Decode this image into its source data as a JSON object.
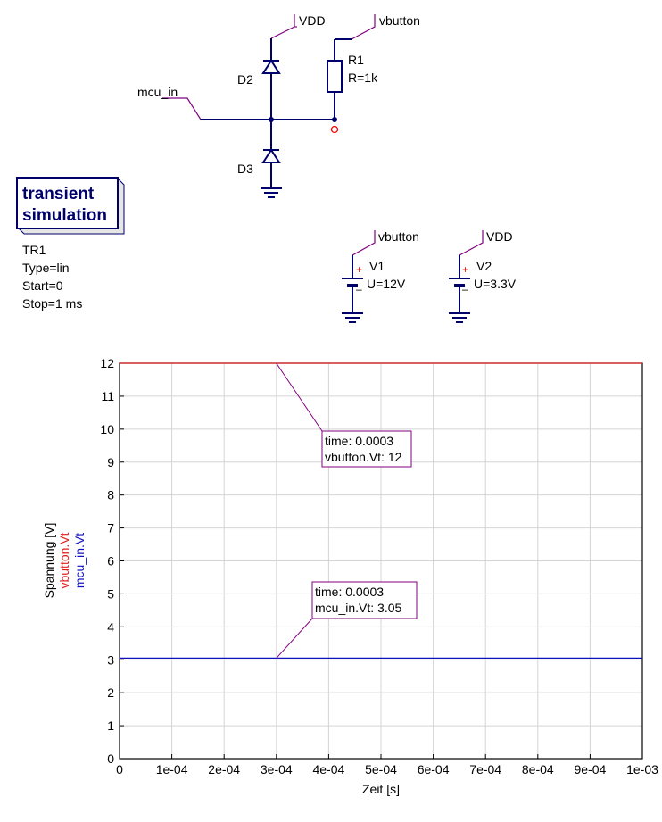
{
  "schematic": {
    "labels": {
      "vdd_top": "VDD",
      "vbutton_top": "vbutton",
      "mcu_in": "mcu_in",
      "vbutton_src": "vbutton",
      "vdd_src": "VDD"
    },
    "components": {
      "d2": "D2",
      "d3": "D3",
      "r1_name": "R1",
      "r1_value": "R=1k",
      "v1_name": "V1",
      "v1_value": "U=12V",
      "v2_name": "V2",
      "v2_value": "U=3.3V"
    },
    "simulation_box": {
      "title_line1": "transient",
      "title_line2": "simulation",
      "name": "TR1",
      "type": "Type=lin",
      "start": "Start=0",
      "stop": "Stop=1 ms"
    },
    "colors": {
      "wire": "#00006b",
      "label_pole": "#800080",
      "node_marker": "#ff0000"
    }
  },
  "chart_data": {
    "type": "line",
    "xlabel": "Zeit [s]",
    "ylabel": "Spannung [V]",
    "xlim": [
      0,
      0.001
    ],
    "ylim": [
      0,
      12
    ],
    "x_ticks": [
      "0",
      "1e-04",
      "2e-04",
      "3e-04",
      "4e-04",
      "5e-04",
      "6e-04",
      "7e-04",
      "8e-04",
      "9e-04",
      "1e-03"
    ],
    "y_ticks": [
      "0",
      "1",
      "2",
      "3",
      "4",
      "5",
      "6",
      "7",
      "8",
      "9",
      "10",
      "11",
      "12"
    ],
    "grid": true,
    "series": [
      {
        "name": "vbutton.Vt",
        "color": "#e02020",
        "x": [
          0,
          0.001
        ],
        "values": [
          12,
          12
        ]
      },
      {
        "name": "mcu_in.Vt",
        "color": "#1010c0",
        "x": [
          0,
          0.001
        ],
        "values": [
          3.05,
          3.05
        ]
      }
    ],
    "markers": [
      {
        "line1": "time: 0.0003",
        "line2": "vbutton.Vt: 12",
        "x": 0.0003,
        "y": 12
      },
      {
        "line1": "time: 0.0003",
        "line2": "mcu_in.Vt: 3.05",
        "x": 0.0003,
        "y": 3.05
      }
    ]
  }
}
